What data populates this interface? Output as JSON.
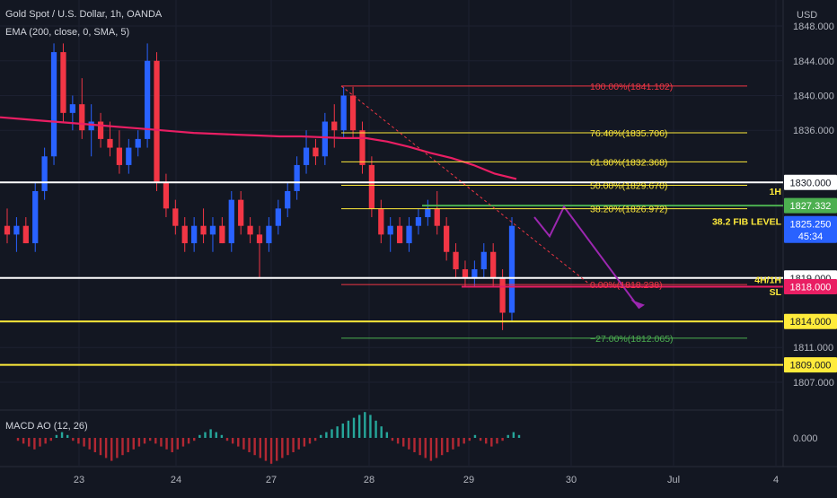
{
  "header": {
    "title": "Gold Spot / U.S. Dollar, 1h, OANDA",
    "indicator": "EMA (200, close, 0, SMA, 5)"
  },
  "currency": "USD",
  "macd_label": "MACD AO (12, 26)",
  "macd_axis_label": "0.000",
  "chart_data": {
    "type": "candlestick",
    "title": "Gold Spot / U.S. Dollar, 1h, OANDA",
    "y_axis": {
      "ticks": [
        "1848.000",
        "1844.000",
        "1840.000",
        "1836.000",
        "1830.000",
        "1819.000",
        "1811.000",
        "1807.000"
      ],
      "ylim": [
        1804,
        1851
      ]
    },
    "x_axis": {
      "ticks": [
        "23",
        "24",
        "27",
        "28",
        "29",
        "30",
        "Jul",
        "4"
      ]
    },
    "price_labels": [
      {
        "text": "1830.000",
        "value": 1830.0,
        "bg": "#ffffff",
        "fg": "#131722"
      },
      {
        "text": "1827.332",
        "value": 1827.332,
        "bg": "#4caf50",
        "fg": "#ffffff"
      },
      {
        "text": "1825.250",
        "value": 1825.25,
        "bg": "#2962ff",
        "fg": "#ffffff",
        "sub": "45:34"
      },
      {
        "text": "1819.000",
        "value": 1819.0,
        "bg": "#ffffff",
        "fg": "#131722"
      },
      {
        "text": "1818.000",
        "value": 1818.0,
        "bg": "#e91e63",
        "fg": "#ffffff"
      },
      {
        "text": "1814.000",
        "value": 1814.0,
        "bg": "#ffeb3b",
        "fg": "#131722"
      },
      {
        "text": "1809.000",
        "value": 1809.0,
        "bg": "#ffeb3b",
        "fg": "#131722"
      }
    ],
    "horizontal_lines": [
      {
        "value": 1830.0,
        "color": "#ffffff"
      },
      {
        "value": 1819.0,
        "color": "#ffffff"
      },
      {
        "value": 1814.0,
        "color": "#ffeb3b"
      },
      {
        "value": 1809.0,
        "color": "#ffeb3b"
      }
    ],
    "fib_levels": [
      {
        "label": "100.00%(1841.102)",
        "value": 1841.102,
        "color": "#f23645"
      },
      {
        "label": "76.40%(1835.706)",
        "value": 1835.706,
        "color": "#ffeb3b"
      },
      {
        "label": "61.80%(1832.368)",
        "value": 1832.368,
        "color": "#ffeb3b"
      },
      {
        "label": "50.00%(1829.670)",
        "value": 1829.67,
        "color": "#ffeb3b"
      },
      {
        "label": "38.20%(1826.972)",
        "value": 1826.972,
        "color": "#ffeb3b"
      },
      {
        "label": "0.00%(1818.238)",
        "value": 1818.238,
        "color": "#f23645"
      },
      {
        "label": "−27.00%(1812.065)",
        "value": 1812.065,
        "color": "#4caf50"
      }
    ],
    "annotations": [
      {
        "text": "1H",
        "color": "#ffeb3b"
      },
      {
        "text": "38.2 FIB LEVEL",
        "color": "#ffeb3b"
      },
      {
        "text": "4H/1H",
        "color": "#ffeb3b"
      },
      {
        "text": "SL",
        "color": "#ffeb3b"
      }
    ],
    "ema_line": [
      1837.5,
      1837.3,
      1837.1,
      1836.9,
      1836.7,
      1836.5,
      1836.3,
      1836.1,
      1835.9,
      1835.7,
      1835.6,
      1835.5,
      1835.4,
      1835.3,
      1835.3,
      1835.2,
      1835.1,
      1835.1,
      1834.7,
      1834.1,
      1833.4,
      1832.8,
      1832.0,
      1831.0,
      1830.4
    ],
    "macd_histogram": [
      -1,
      -2,
      -3,
      -4,
      -3,
      -2,
      -1,
      1,
      2,
      1,
      -1,
      -2,
      -3,
      -4,
      -5,
      -6,
      -7,
      -8,
      -7,
      -6,
      -5,
      -4,
      -3,
      -2,
      -1,
      -2,
      -3,
      -4,
      -5,
      -4,
      -3,
      -2,
      -1,
      1,
      2,
      3,
      2,
      1,
      -1,
      -2,
      -3,
      -4,
      -5,
      -6,
      -7,
      -8,
      -9,
      -8,
      -7,
      -6,
      -5,
      -4,
      -3,
      -2,
      -1,
      1,
      2,
      3,
      4,
      5,
      6,
      7,
      8,
      9,
      8,
      6,
      4,
      2,
      -1,
      -2,
      -3,
      -4,
      -5,
      -6,
      -7,
      -8,
      -7,
      -6,
      -5,
      -4,
      -3,
      -2,
      -1,
      1,
      -1,
      -2,
      -3,
      -2,
      -1,
      1,
      2,
      1
    ],
    "candles_ohlc": [
      [
        1825,
        1827,
        1823,
        1824
      ],
      [
        1824,
        1826,
        1822,
        1825
      ],
      [
        1825,
        1826,
        1823,
        1823
      ],
      [
        1823,
        1830,
        1822,
        1829
      ],
      [
        1829,
        1834,
        1828,
        1833
      ],
      [
        1833,
        1846,
        1832,
        1845
      ],
      [
        1845,
        1846,
        1837,
        1838
      ],
      [
        1838,
        1840,
        1836,
        1839
      ],
      [
        1839,
        1842,
        1835,
        1836
      ],
      [
        1836,
        1839,
        1833,
        1837
      ],
      [
        1837,
        1838,
        1834,
        1835
      ],
      [
        1835,
        1837,
        1833,
        1834
      ],
      [
        1834,
        1836,
        1831,
        1832
      ],
      [
        1832,
        1835,
        1831,
        1834
      ],
      [
        1834,
        1836,
        1833,
        1835
      ],
      [
        1835,
        1846,
        1834,
        1844
      ],
      [
        1844,
        1845,
        1829,
        1830
      ],
      [
        1830,
        1831,
        1826,
        1827
      ],
      [
        1827,
        1828,
        1824,
        1825
      ],
      [
        1825,
        1826,
        1822,
        1823
      ],
      [
        1823,
        1826,
        1822,
        1825
      ],
      [
        1825,
        1827,
        1823,
        1824
      ],
      [
        1824,
        1826,
        1822,
        1825
      ],
      [
        1825,
        1826,
        1823,
        1823
      ],
      [
        1823,
        1829,
        1822,
        1828
      ],
      [
        1828,
        1829,
        1824,
        1825
      ],
      [
        1825,
        1826,
        1823,
        1824
      ],
      [
        1824,
        1825,
        1819,
        1823
      ],
      [
        1823,
        1826,
        1822,
        1825
      ],
      [
        1825,
        1828,
        1824,
        1827
      ],
      [
        1827,
        1830,
        1826,
        1829
      ],
      [
        1829,
        1833,
        1828,
        1832
      ],
      [
        1832,
        1836,
        1831,
        1834
      ],
      [
        1834,
        1835,
        1832,
        1833
      ],
      [
        1833,
        1838,
        1832,
        1837
      ],
      [
        1837,
        1839,
        1834,
        1836
      ],
      [
        1836,
        1841,
        1835,
        1840
      ],
      [
        1840,
        1841,
        1835,
        1836
      ],
      [
        1836,
        1837,
        1831,
        1832
      ],
      [
        1832,
        1833,
        1826,
        1827
      ],
      [
        1827,
        1828,
        1823,
        1824
      ],
      [
        1824,
        1826,
        1822,
        1825
      ],
      [
        1825,
        1826,
        1823,
        1823
      ],
      [
        1823,
        1826,
        1822,
        1825
      ],
      [
        1825,
        1827,
        1824,
        1826
      ],
      [
        1826,
        1828,
        1825,
        1827
      ],
      [
        1827,
        1829,
        1824,
        1825
      ],
      [
        1825,
        1826,
        1821,
        1822
      ],
      [
        1822,
        1823,
        1819,
        1820
      ],
      [
        1820,
        1821,
        1818,
        1819
      ],
      [
        1819,
        1821,
        1818,
        1820
      ],
      [
        1820,
        1823,
        1819,
        1822
      ],
      [
        1822,
        1823,
        1818,
        1819
      ],
      [
        1819,
        1820,
        1813,
        1815
      ],
      [
        1815,
        1826,
        1814,
        1825
      ]
    ]
  }
}
